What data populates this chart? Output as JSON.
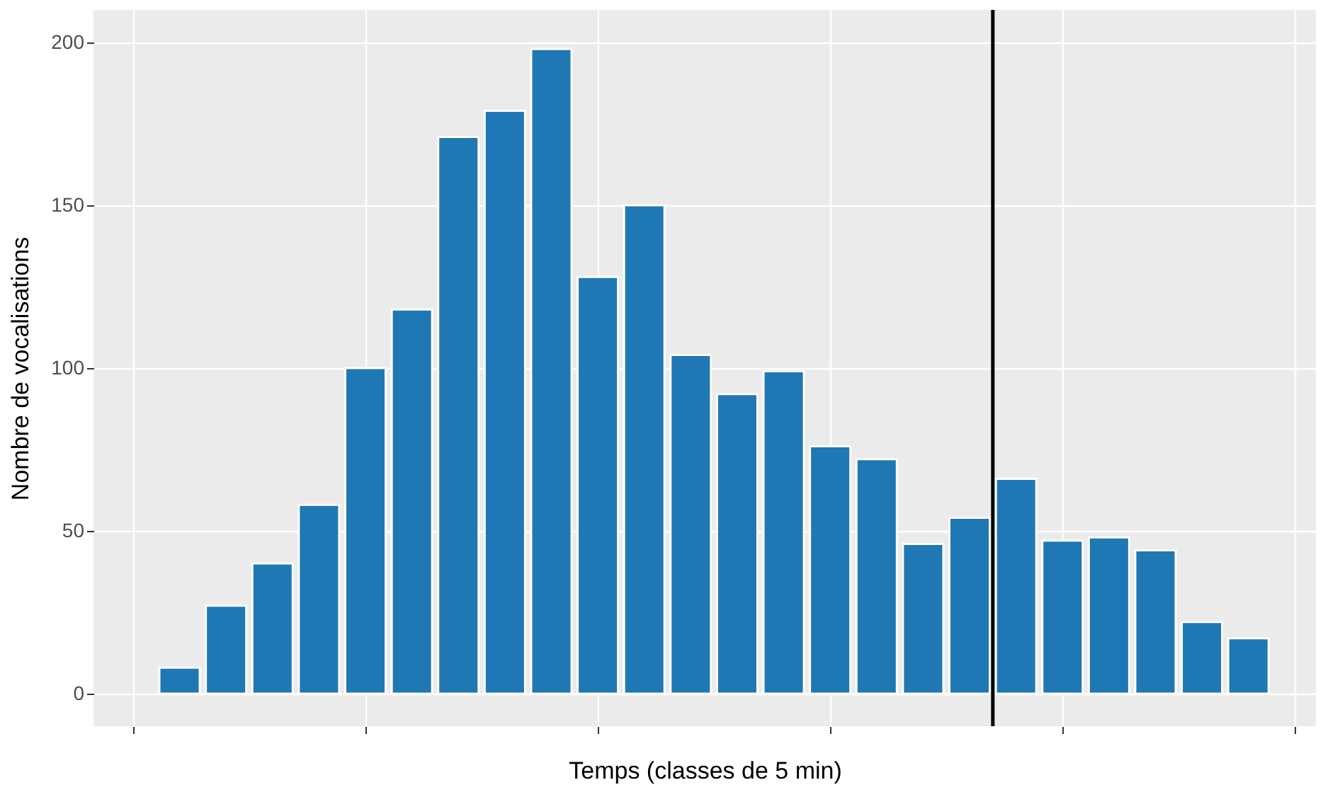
{
  "chart_data": {
    "type": "bar",
    "xlabel": "Temps (classes de 5 min)",
    "ylabel": "Nombre de vocalisations",
    "categories": [
      null,
      null,
      null,
      null,
      null,
      null,
      null,
      null,
      null,
      null,
      null,
      null,
      null,
      null,
      null,
      null,
      null,
      null,
      null,
      null,
      null,
      null,
      null,
      null
    ],
    "series": [
      {
        "color": "#1f78b4",
        "values": [
          8,
          27,
          40,
          58,
          100,
          118,
          171,
          179,
          198,
          128,
          150,
          104,
          92,
          99,
          76,
          72,
          46,
          54,
          66,
          47,
          48,
          44,
          22,
          17
        ]
      }
    ],
    "ylim": [
      -10,
      210
    ],
    "yticks": [
      0,
      50,
      100,
      150,
      200
    ],
    "grid": true,
    "tick_labels": "y"
  }
}
